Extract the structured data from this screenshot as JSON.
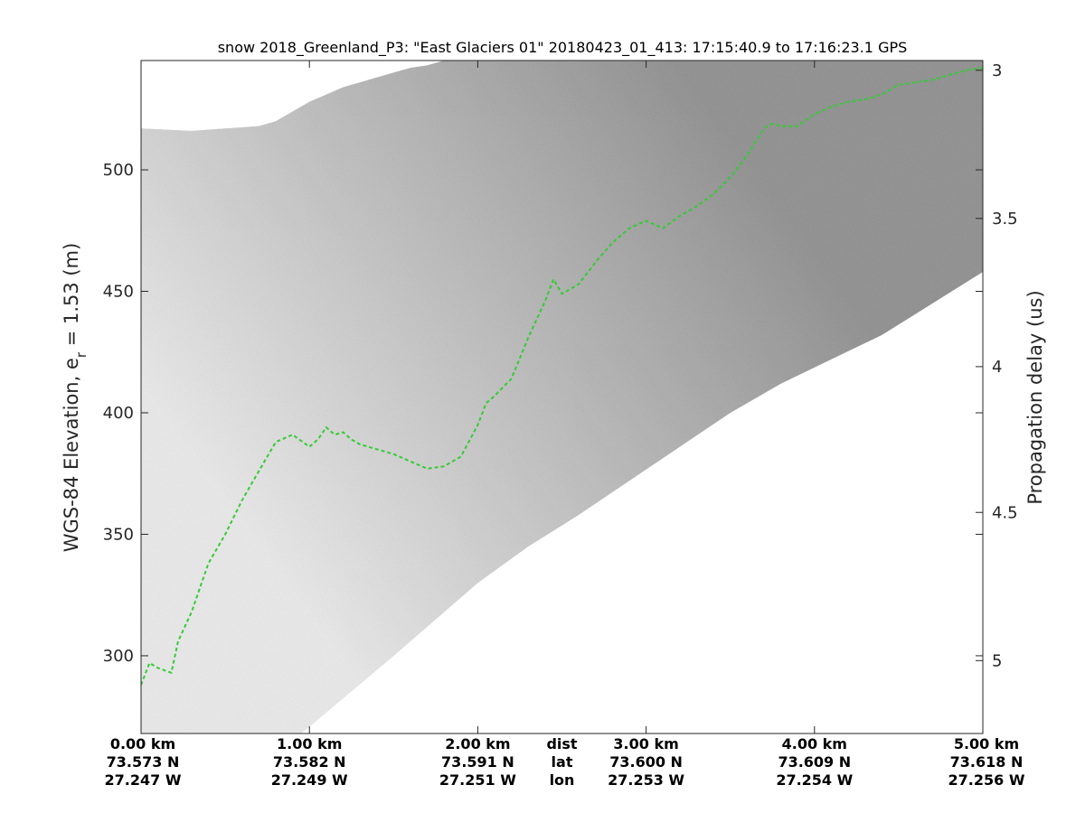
{
  "chart_data": {
    "type": "line",
    "title": "snow 2018_Greenland_P3: \"East Glaciers 01\"  20180423_01_413: 17:15:40.9 to 17:16:23.1 GPS",
    "ylabel": "WGS-84 Elevation, e",
    "ylabel_sub": "r",
    "ylabel_tail": " = 1.53 (m)",
    "y2label": "Propagation delay (us)",
    "xlim": [
      0,
      5
    ],
    "ylim": [
      268,
      545
    ],
    "y_ticks": [
      300,
      350,
      400,
      450,
      500
    ],
    "y2_ticks": [
      {
        "label": "3",
        "elev": 541
      },
      {
        "label": "3.5",
        "elev": 480
      },
      {
        "label": "4",
        "elev": 419
      },
      {
        "label": "4.5",
        "elev": 359
      },
      {
        "label": "5",
        "elev": 298
      }
    ],
    "x_ticks": [
      {
        "x": 0,
        "dist": "0.00 km",
        "lat": "73.573 N",
        "lon": "27.247 W"
      },
      {
        "x": 1,
        "dist": "1.00 km",
        "lat": "73.582 N",
        "lon": "27.249 W"
      },
      {
        "x": 2,
        "dist": "2.00 km",
        "lat": "73.591 N",
        "lon": "27.251 W"
      },
      {
        "x": 3,
        "dist": "3.00 km",
        "lat": "73.600 N",
        "lon": "27.253 W"
      },
      {
        "x": 4,
        "dist": "4.00 km",
        "lat": "73.609 N",
        "lon": "27.254 W"
      },
      {
        "x": 5,
        "dist": "5.00 km",
        "lat": "73.618 N",
        "lon": "27.256 W"
      }
    ],
    "row_labels": {
      "x": 2.5,
      "dist": "dist",
      "lat": "lat",
      "lon": "lon"
    },
    "series": [
      {
        "color": "#33cc33",
        "style": "dashed",
        "x": [
          0,
          0.05,
          0.1,
          0.18,
          0.22,
          0.3,
          0.4,
          0.5,
          0.6,
          0.7,
          0.8,
          0.9,
          1.0,
          1.05,
          1.1,
          1.15,
          1.2,
          1.25,
          1.3,
          1.4,
          1.5,
          1.6,
          1.7,
          1.8,
          1.9,
          2.0,
          2.05,
          2.1,
          2.2,
          2.3,
          2.4,
          2.45,
          2.5,
          2.55,
          2.6,
          2.7,
          2.8,
          2.9,
          3.0,
          3.1,
          3.2,
          3.3,
          3.4,
          3.5,
          3.6,
          3.7,
          3.75,
          3.8,
          3.9,
          4.0,
          4.1,
          4.2,
          4.3,
          4.4,
          4.5,
          4.6,
          4.7,
          4.8,
          4.9,
          5.0
        ],
        "y": [
          288,
          297,
          295,
          293,
          306,
          318,
          338,
          350,
          364,
          376,
          388,
          391,
          386,
          389,
          394,
          391,
          392,
          389,
          387,
          385,
          383,
          380,
          377,
          378,
          382,
          395,
          404,
          407,
          414,
          431,
          446,
          455,
          449,
          451,
          453,
          462,
          470,
          476,
          479,
          476,
          481,
          485,
          490,
          497,
          506,
          517,
          519,
          518,
          518,
          523,
          526,
          528,
          529,
          531,
          535,
          536,
          537,
          539,
          541,
          542
        ]
      }
    ],
    "echogram": {
      "colormap": "gray",
      "background": "#8a8a8a",
      "surface_elev": [
        517,
        516,
        517,
        518,
        520,
        524,
        528,
        531,
        534,
        536,
        538,
        540,
        542,
        543,
        545,
        545
      ],
      "surface_x": [
        0,
        0.3,
        0.5,
        0.7,
        0.8,
        0.9,
        1.0,
        1.1,
        1.2,
        1.3,
        1.4,
        1.5,
        1.6,
        1.7,
        1.8,
        5.0
      ],
      "floor_elev": [
        268,
        268,
        300,
        318,
        330,
        345,
        358,
        372,
        386,
        400,
        412,
        422,
        432,
        445,
        458
      ],
      "floor_x": [
        0,
        0.95,
        1.5,
        1.8,
        2.0,
        2.3,
        2.6,
        2.9,
        3.2,
        3.5,
        3.8,
        4.1,
        4.4,
        4.7,
        5.0
      ]
    }
  }
}
